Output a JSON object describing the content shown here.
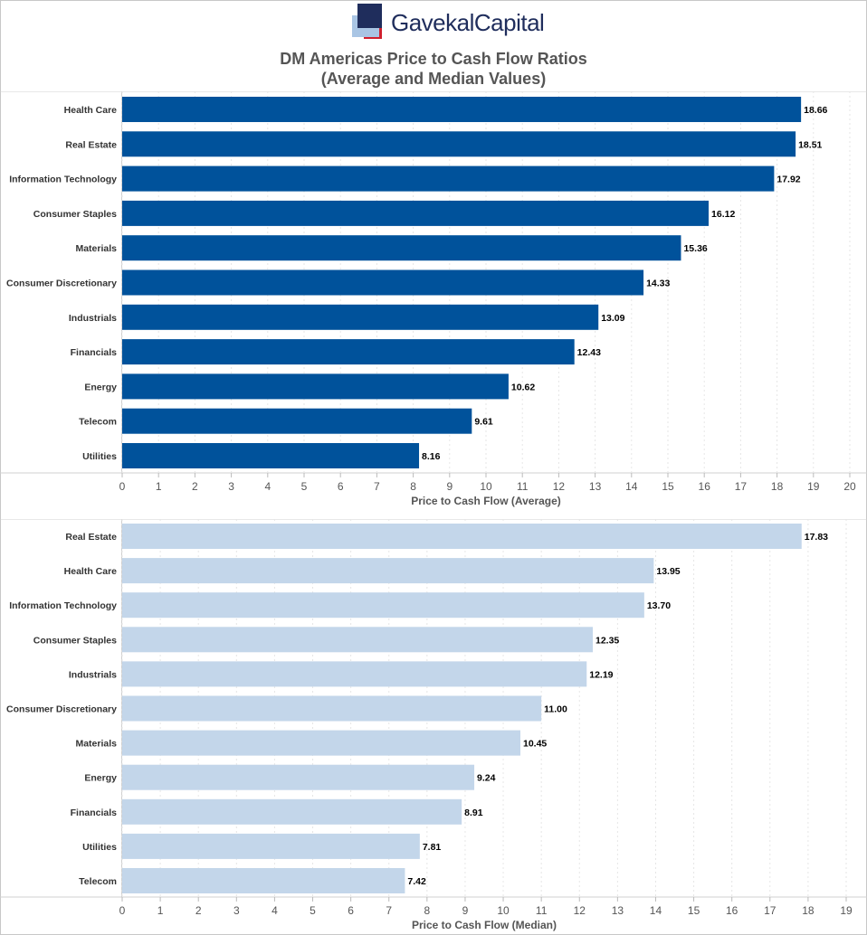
{
  "logo": {
    "text": "GavekalCapital"
  },
  "title": {
    "line1": "DM Americas Price to Cash Flow Ratios",
    "line2": "(Average and Median Values)"
  },
  "colors": {
    "average_bar": "#00529B",
    "median_bar": "#C3D6EA",
    "grid": "#e6e6e6",
    "axis": "#d0d0d0",
    "logo_navy": "#1f2d5c",
    "logo_light": "#a9c5e4",
    "logo_red": "#d0202e"
  },
  "chart_data": [
    {
      "type": "bar",
      "orientation": "horizontal",
      "title": "",
      "xlabel": "Price to Cash Flow (Average)",
      "ylabel": "",
      "xlim": [
        0,
        20
      ],
      "ticks": [
        0,
        1,
        2,
        3,
        4,
        5,
        6,
        7,
        8,
        9,
        10,
        11,
        12,
        13,
        14,
        15,
        16,
        17,
        18,
        19,
        20
      ],
      "categories": [
        "Health Care",
        "Real Estate",
        "Information Technology",
        "Consumer Staples",
        "Materials",
        "Consumer Discretionary",
        "Industrials",
        "Financials",
        "Energy",
        "Telecom",
        "Utilities"
      ],
      "values": [
        18.66,
        18.51,
        17.92,
        16.12,
        15.36,
        14.33,
        13.09,
        12.43,
        10.62,
        9.61,
        8.16
      ],
      "labels": [
        "18.66",
        "18.51",
        "17.92",
        "16.12",
        "15.36",
        "14.33",
        "13.09",
        "12.43",
        "10.62",
        "9.61",
        "8.16"
      ]
    },
    {
      "type": "bar",
      "orientation": "horizontal",
      "title": "",
      "xlabel": "Price to Cash Flow (Median)",
      "ylabel": "",
      "xlim": [
        0,
        19
      ],
      "ticks": [
        0,
        1,
        2,
        3,
        4,
        5,
        6,
        7,
        8,
        9,
        10,
        11,
        12,
        13,
        14,
        15,
        16,
        17,
        18,
        19
      ],
      "categories": [
        "Real Estate",
        "Health Care",
        "Information Technology",
        "Consumer Staples",
        "Industrials",
        "Consumer Discretionary",
        "Materials",
        "Energy",
        "Financials",
        "Utilities",
        "Telecom"
      ],
      "values": [
        17.83,
        13.95,
        13.7,
        12.35,
        12.19,
        11.0,
        10.45,
        9.24,
        8.91,
        7.81,
        7.42
      ],
      "labels": [
        "17.83",
        "13.95",
        "13.70",
        "12.35",
        "12.19",
        "11.00",
        "10.45",
        "9.24",
        "8.91",
        "7.81",
        "7.42"
      ]
    }
  ]
}
